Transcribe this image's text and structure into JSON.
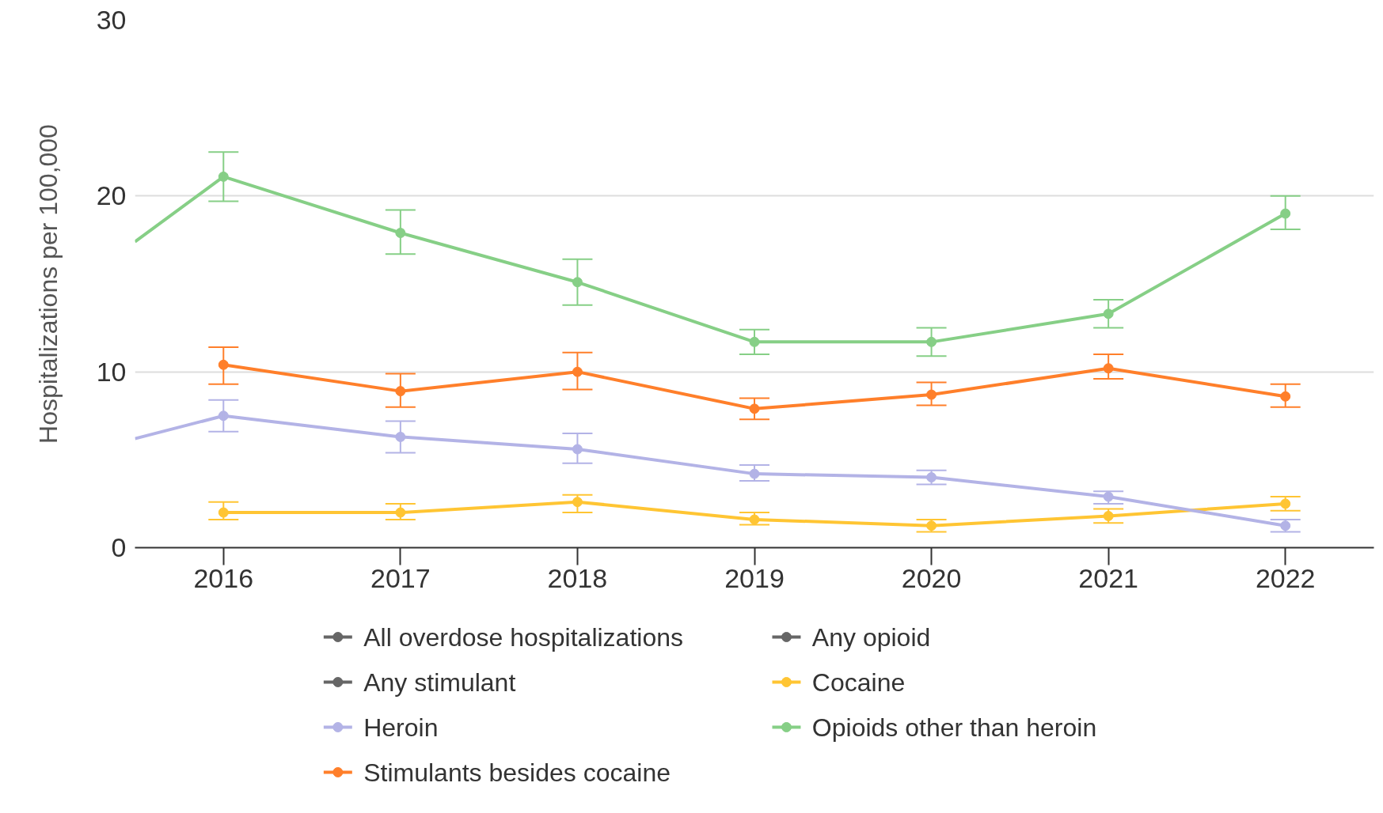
{
  "chart_data": {
    "type": "line",
    "ylabel": "Hospitalizations per 100,000",
    "xlim": [
      2015.5,
      2022.5
    ],
    "xticks": [
      2016,
      2017,
      2018,
      2019,
      2020,
      2021,
      2022
    ],
    "ylim": [
      0,
      30
    ],
    "yticks": [
      0,
      10,
      20,
      30
    ],
    "grid": "y",
    "legend": "bottom",
    "marker": "circle",
    "line_style": "solid",
    "series": [
      {
        "name": "All overdose hospitalizations",
        "color": "#666666"
      },
      {
        "name": "Any opioid",
        "color": "#666666"
      },
      {
        "name": "Any stimulant",
        "color": "#666666"
      },
      {
        "name": "Cocaine",
        "color": "#ffc533",
        "x": [
          2016,
          2017,
          2018,
          2019,
          2020,
          2021,
          2022
        ],
        "values": [
          2.0,
          2.0,
          2.6,
          1.6,
          1.25,
          1.8,
          2.5
        ],
        "errors": [
          [
            1.6,
            2.6
          ],
          [
            1.6,
            2.5
          ],
          [
            2.0,
            3.0
          ],
          [
            1.3,
            2.0
          ],
          [
            0.9,
            1.6
          ],
          [
            1.4,
            2.2
          ],
          [
            2.1,
            2.9
          ]
        ]
      },
      {
        "name": "Heroin",
        "color": "#b3b3e6",
        "x": [
          2015.5,
          2016,
          2017,
          2018,
          2019,
          2020,
          2021,
          2022
        ],
        "values": [
          6.2,
          7.5,
          6.3,
          5.6,
          4.2,
          4.0,
          2.9,
          1.25
        ],
        "errors": [
          null,
          [
            6.6,
            8.4
          ],
          [
            5.4,
            7.2
          ],
          [
            4.8,
            6.5
          ],
          [
            3.8,
            4.7
          ],
          [
            3.6,
            4.4
          ],
          [
            2.5,
            3.2
          ],
          [
            0.9,
            1.6
          ]
        ]
      },
      {
        "name": "Opioids other than heroin",
        "color": "#86cf86",
        "x": [
          2015.5,
          2016,
          2017,
          2018,
          2019,
          2020,
          2021,
          2022
        ],
        "values": [
          17.4,
          21.1,
          17.9,
          15.1,
          11.7,
          11.7,
          13.3,
          19.0
        ],
        "errors": [
          null,
          [
            19.7,
            22.5
          ],
          [
            16.7,
            19.2
          ],
          [
            13.8,
            16.4
          ],
          [
            11.0,
            12.4
          ],
          [
            10.9,
            12.5
          ],
          [
            12.5,
            14.1
          ],
          [
            18.1,
            20.0
          ]
        ]
      },
      {
        "name": "Stimulants besides cocaine",
        "color": "#ff7f2a",
        "x": [
          2016,
          2017,
          2018,
          2019,
          2020,
          2021,
          2022
        ],
        "values": [
          10.4,
          8.9,
          10.0,
          7.9,
          8.7,
          10.2,
          8.6
        ],
        "errors": [
          [
            9.3,
            11.4
          ],
          [
            8.0,
            9.9
          ],
          [
            9.0,
            11.1
          ],
          [
            7.3,
            8.5
          ],
          [
            8.1,
            9.4
          ],
          [
            9.6,
            11.0
          ],
          [
            8.0,
            9.3
          ]
        ]
      }
    ]
  }
}
